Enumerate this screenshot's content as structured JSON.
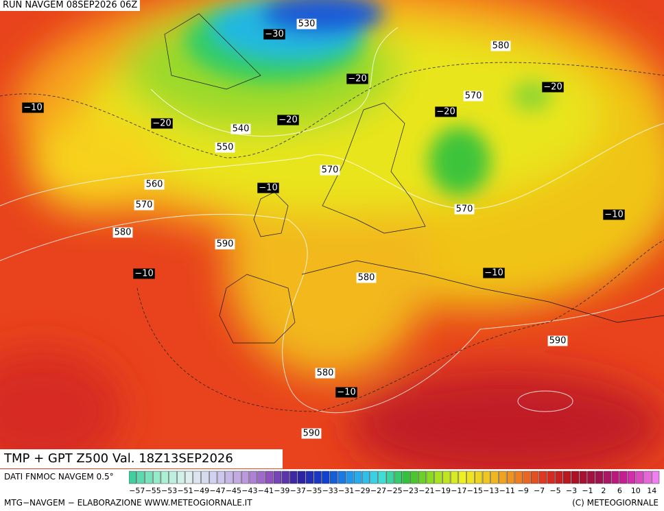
{
  "header": {
    "run": "RUN NAVGEM 08SEP2026 06Z"
  },
  "map": {
    "height_labels": [
      "530",
      "580",
      "570",
      "540",
      "550",
      "570",
      "560",
      "570",
      "580",
      "590",
      "570",
      "580",
      "590",
      "580",
      "590"
    ],
    "temperature_labels": [
      "−30",
      "−20",
      "−20",
      "−10",
      "−20",
      "−20",
      "−20",
      "−10",
      "−10",
      "−10",
      "−10",
      "−10"
    ]
  },
  "footer": {
    "title": "TMP + GPT Z500 Val. 18Z13SEP2026",
    "source": "DATI FNMOC NAVGEM 0.5°",
    "credit_left": "MTG−NAVGEM − ELABORAZIONE WWW.METEOGIORNALE.IT",
    "credit_right": "(C) METEOGIORNALE"
  },
  "legend": {
    "labels": [
      "−57",
      "−55",
      "−53",
      "−51",
      "−49",
      "−47",
      "−45",
      "−43",
      "−41",
      "−39",
      "−37",
      "−35",
      "−33",
      "−31",
      "−29",
      "−27",
      "−25",
      "−23",
      "−21",
      "−19",
      "−17",
      "−15",
      "−13",
      "−11",
      "−9",
      "−7",
      "−5",
      "−3",
      "−1",
      "2",
      "6",
      "10",
      "14"
    ]
  }
}
